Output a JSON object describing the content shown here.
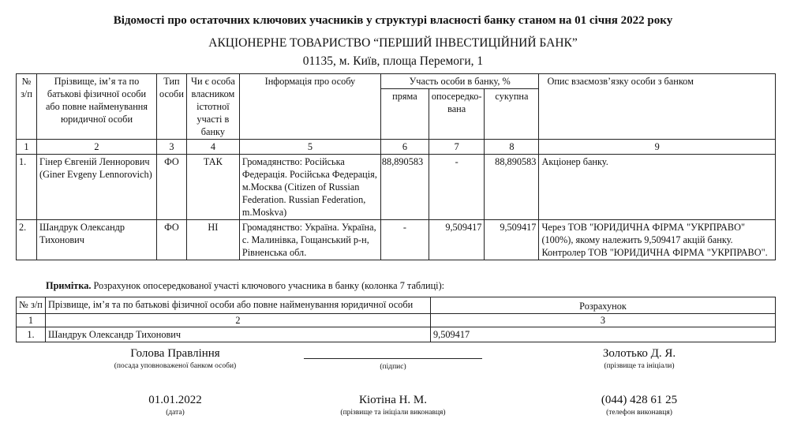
{
  "title": "Відомості про остаточних ключових учасників у структурі власності банку станом на 01 січня 2022 року",
  "bank_name": "АКЦІОНЕРНЕ ТОВАРИСТВО “ПЕРШИЙ ІНВЕСТИЦІЙНИЙ БАНК”",
  "address": "01135, м. Київ, площа Перемоги, 1",
  "main_table": {
    "headers": {
      "num": "№ з/п",
      "name": "Прізвище, ім’я та по батькові фізичної особи або повне найменування юридичної особи",
      "type": "Тип особи",
      "owner": "Чи є особа власником істотної участі в банку",
      "info": "Інформація про особу",
      "share": "Участь особи в банку, %",
      "direct": "пряма",
      "indirect": "опосередко-вана",
      "total": "сукупна",
      "relation": "Опис взаємозв’язку особи з банком"
    },
    "col_numbers": [
      "1",
      "2",
      "3",
      "4",
      "5",
      "6",
      "7",
      "8",
      "9"
    ],
    "rows": [
      {
        "num": "1.",
        "name": "Гінер Євгеній Леннорович (Giner Evgeny Lennorovich)",
        "type": "ФО",
        "owner": "ТАК",
        "info": "Громадянство: Російська Федерація. Російська Федерація, м.Москва (Citizen of Russian Federation. Russian Federation, m.Moskva)",
        "direct": "88,890583",
        "indirect": "-",
        "total": "88,890583",
        "relation": "Акціонер банку."
      },
      {
        "num": "2.",
        "name": "Шандрук Олександр Тихонович",
        "type": "ФО",
        "owner": "НІ",
        "info": "Громадянство: Україна. Україна, с. Малинівка, Гощанський р-н, Рівненська обл.",
        "direct": "-",
        "indirect": "9,509417",
        "total": "9,509417",
        "relation": "Через ТОВ \"ЮРИДИЧНА ФІРМА \"УКРПРАВО\" (100%), якому належить 9,509417 акцій банку. Контролер ТОВ \"ЮРИДИЧНА ФІРМА \"УКРПРАВО\"."
      }
    ]
  },
  "note": {
    "label": "Примітка.",
    "text": " Розрахунок опосередкованої участі ключового учасника в банку (колонка 7 таблиці):"
  },
  "note_table": {
    "headers": {
      "num": "№ з/п",
      "name": "Прізвище, ім’я та по батькові фізичної особи або повне найменування юридичної особи",
      "calc": "Розрахунок"
    },
    "col_numbers": [
      "1",
      "2",
      "3"
    ],
    "rows": [
      {
        "num": "1.",
        "name": "Шандрук Олександр Тихонович",
        "calc": "9,509417"
      }
    ]
  },
  "signatures": {
    "position": {
      "value": "Голова Правління",
      "label": "(посада уповноваженої банком особи)"
    },
    "signature": {
      "label": "(підпис)"
    },
    "head_name": {
      "value": "Золотько Д. Я.",
      "label": "(прізвище та ініціали)"
    },
    "date": {
      "value": "01.01.2022",
      "label": "(дата)"
    },
    "executor": {
      "value": "Кіотіна Н. М.",
      "label": "(прізвище та ініціали виконавця)"
    },
    "phone": {
      "value": "(044) 428 61 25",
      "label": "(телефон виконавця)"
    }
  }
}
